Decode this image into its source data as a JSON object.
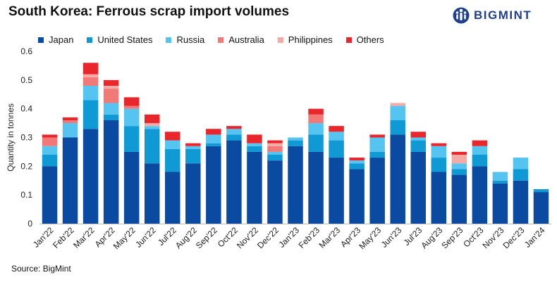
{
  "header": {
    "title": "South Korea: Ferrous scrap import volumes",
    "logo_text": "BIGMINT"
  },
  "footer": {
    "source": "Source: BigMint"
  },
  "chart_data": {
    "type": "bar",
    "stacked": true,
    "title": "South Korea: Ferrous scrap import volumes",
    "xlabel": "",
    "ylabel": "Quantity in tonnes",
    "ylim": [
      0,
      0.6
    ],
    "yticks": [
      0,
      0.1,
      0.2,
      0.3,
      0.4,
      0.5,
      0.6
    ],
    "ytick_labels": [
      "0",
      "0.1",
      "0.2",
      "0.3",
      "0.4",
      "0.5",
      "0.6"
    ],
    "legend_position": "top",
    "categories": [
      "Jan'22",
      "Feb'22",
      "Mar'22",
      "Apr'22",
      "May'22",
      "Jun'22",
      "Jul'22",
      "Aug'22",
      "Sep'22",
      "Oct'22",
      "Nov'22",
      "Dec'22",
      "Jan'23",
      "Feb'23",
      "Mar'23",
      "Apr'23",
      "May'23",
      "Jun'23",
      "Jul'23",
      "Aug'23",
      "Sep'23",
      "Oct'23",
      "Nov'23",
      "Dec'23",
      "Jan'24"
    ],
    "series": [
      {
        "name": "Japan",
        "color": "#0a4aa0",
        "values": [
          0.2,
          0.3,
          0.33,
          0.36,
          0.25,
          0.21,
          0.18,
          0.21,
          0.27,
          0.29,
          0.25,
          0.22,
          0.27,
          0.25,
          0.23,
          0.19,
          0.23,
          0.31,
          0.25,
          0.18,
          0.17,
          0.2,
          0.14,
          0.15,
          0.11
        ]
      },
      {
        "name": "United States",
        "color": "#0f9ad6",
        "values": [
          0.04,
          0.0,
          0.1,
          0.02,
          0.09,
          0.12,
          0.08,
          0.05,
          0.01,
          0.02,
          0.02,
          0.02,
          0.02,
          0.06,
          0.06,
          0.02,
          0.02,
          0.05,
          0.04,
          0.05,
          0.02,
          0.04,
          0.01,
          0.04,
          0.01
        ]
      },
      {
        "name": "Russia",
        "color": "#56c4f0",
        "values": [
          0.03,
          0.05,
          0.05,
          0.04,
          0.06,
          0.01,
          0.03,
          0.01,
          0.03,
          0.02,
          0.01,
          0.01,
          0.01,
          0.04,
          0.03,
          0.01,
          0.05,
          0.05,
          0.01,
          0.04,
          0.02,
          0.03,
          0.03,
          0.04,
          0.0
        ]
      },
      {
        "name": "Australia",
        "color": "#f17a78",
        "values": [
          0.03,
          0.01,
          0.03,
          0.05,
          0.01,
          0.0,
          0.0,
          0.0,
          0.0,
          0.0,
          0.0,
          0.02,
          0.0,
          0.03,
          0.0,
          0.0,
          0.0,
          0.0,
          0.0,
          0.0,
          0.0,
          0.0,
          0.0,
          0.0,
          0.0
        ]
      },
      {
        "name": "Philippines",
        "color": "#f5aaa6",
        "values": [
          0.0,
          0.0,
          0.01,
          0.01,
          0.0,
          0.01,
          0.0,
          0.0,
          0.0,
          0.0,
          0.0,
          0.01,
          0.0,
          0.0,
          0.0,
          0.0,
          0.0,
          0.01,
          0.0,
          0.0,
          0.03,
          0.0,
          0.0,
          0.0,
          0.0
        ]
      },
      {
        "name": "Others",
        "color": "#e8262b",
        "values": [
          0.01,
          0.01,
          0.04,
          0.02,
          0.03,
          0.03,
          0.03,
          0.01,
          0.02,
          0.01,
          0.03,
          0.01,
          0.0,
          0.02,
          0.02,
          0.01,
          0.01,
          0.0,
          0.02,
          0.01,
          0.01,
          0.02,
          0.0,
          0.0,
          0.0
        ]
      }
    ]
  }
}
